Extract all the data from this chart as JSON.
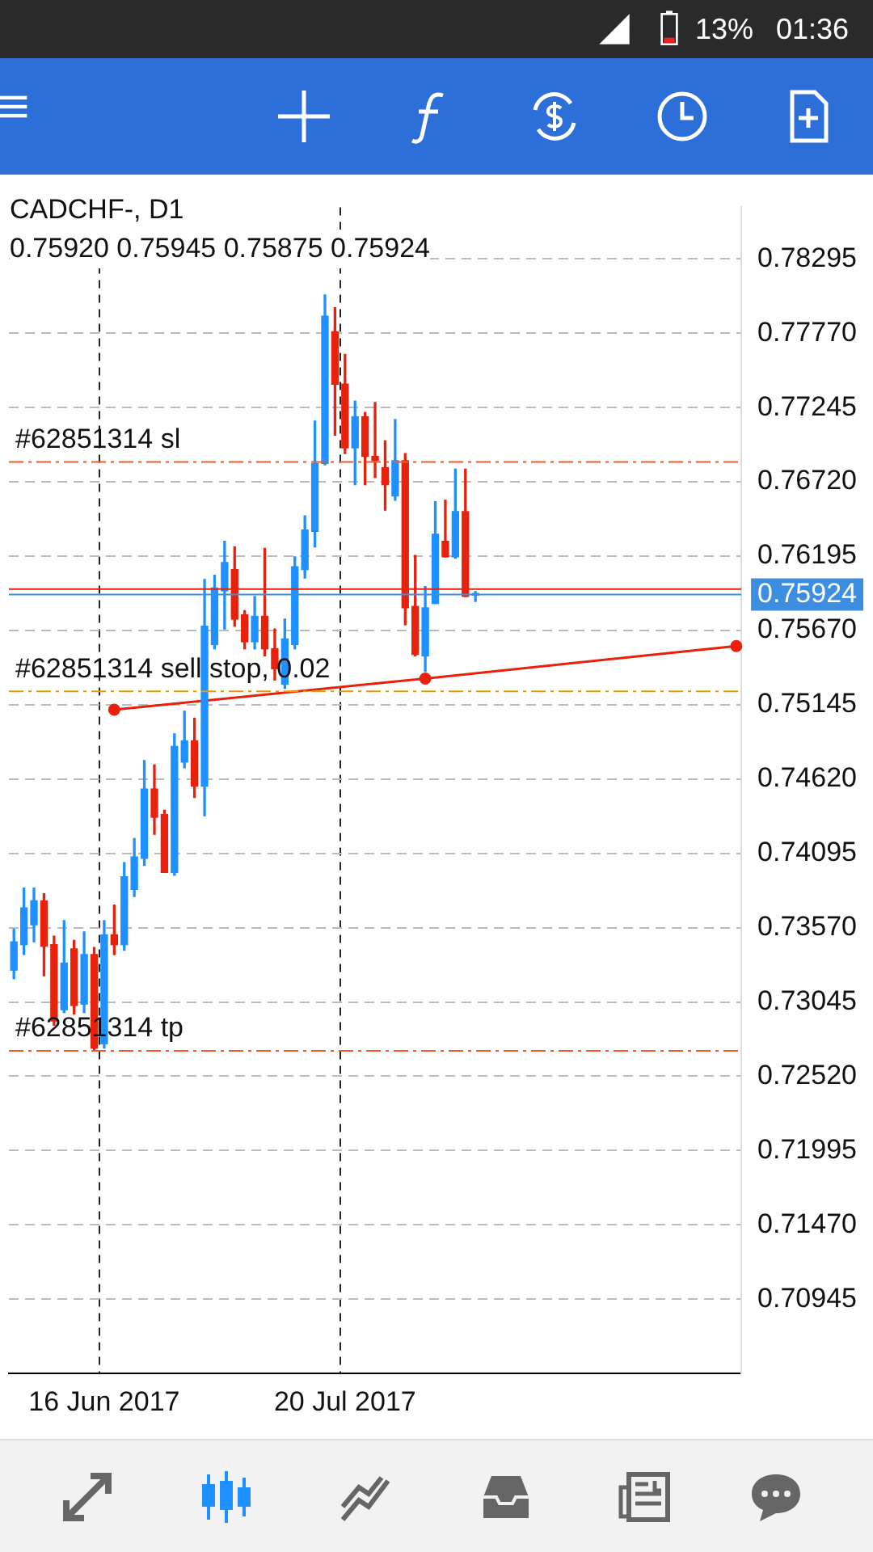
{
  "chart_data": {
    "type": "candlestick",
    "title": "CADCHF-, D1",
    "subtitle": "0.75920 0.75945 0.75875 0.75924",
    "annotations": [
      "13%",
      "01:36"
    ],
    "categories": [
      null,
      null,
      null,
      null,
      null,
      null,
      null,
      null,
      null,
      "16 Jun 2017",
      null,
      null,
      null,
      null,
      null,
      null,
      null,
      null,
      null,
      null,
      null,
      null,
      null,
      null,
      null,
      null,
      null,
      null,
      null,
      null,
      null,
      null,
      null,
      "20 Jul 2017",
      null,
      null,
      null,
      null,
      null,
      null,
      null,
      null,
      null,
      null,
      null,
      null,
      null,
      null,
      null,
      null,
      null,
      null,
      null,
      null,
      null,
      null,
      null,
      null,
      null,
      null,
      null,
      null,
      null,
      null,
      null,
      null,
      null,
      null,
      null,
      null,
      null,
      null,
      null
    ],
    "ohlc": [
      [
        0.7327,
        0.7356,
        0.7321,
        0.7347
      ],
      [
        0.7345,
        0.7385,
        0.7338,
        0.7371
      ],
      [
        0.7359,
        0.7385,
        0.7347,
        0.7376
      ],
      [
        0.7376,
        0.7381,
        0.7323,
        0.7344
      ],
      [
        0.7345,
        0.7351,
        0.7288,
        0.7291
      ],
      [
        0.7299,
        0.7362,
        0.7297,
        0.7332
      ],
      [
        0.7342,
        0.7348,
        0.7296,
        0.7302
      ],
      [
        0.7303,
        0.7354,
        0.7297,
        0.7338
      ],
      [
        0.7338,
        0.7343,
        0.727,
        0.7272
      ],
      [
        0.7275,
        0.7362,
        0.7272,
        0.7352
      ],
      [
        0.7352,
        0.7373,
        0.7338,
        0.7345
      ],
      [
        0.7345,
        0.7403,
        0.7341,
        0.7393
      ],
      [
        0.7384,
        0.742,
        0.7379,
        0.7407
      ],
      [
        0.7406,
        0.7475,
        0.7401,
        0.7455
      ],
      [
        0.7455,
        0.7472,
        0.7423,
        0.7435
      ],
      [
        0.7437,
        0.744,
        0.7396,
        0.7396
      ],
      [
        0.7396,
        0.7494,
        0.7394,
        0.7485
      ],
      [
        0.7474,
        0.751,
        0.747,
        0.7489
      ],
      [
        0.7489,
        0.7505,
        0.7449,
        0.7457
      ],
      [
        0.7457,
        0.7603,
        0.7436,
        0.757
      ],
      [
        0.7557,
        0.7606,
        0.7554,
        0.7597
      ],
      [
        0.7595,
        0.763,
        0.7568,
        0.7615
      ],
      [
        0.761,
        0.7626,
        0.757,
        0.7575
      ],
      [
        0.7578,
        0.7581,
        0.7554,
        0.7559
      ],
      [
        0.7559,
        0.7591,
        0.7554,
        0.7577
      ],
      [
        0.7577,
        0.7625,
        0.7549,
        0.7554
      ],
      [
        0.7554,
        0.7568,
        0.7532,
        0.754
      ],
      [
        0.7529,
        0.7575,
        0.7526,
        0.7561
      ],
      [
        0.7557,
        0.7619,
        0.7554,
        0.7612
      ],
      [
        0.761,
        0.7648,
        0.7604,
        0.7638
      ],
      [
        0.7637,
        0.7715,
        0.7626,
        0.7685
      ],
      [
        0.7685,
        0.7804,
        0.7684,
        0.7789
      ],
      [
        0.7778,
        0.7795,
        0.7705,
        0.7741
      ],
      [
        0.7741,
        0.7762,
        0.7692,
        0.7696
      ],
      [
        0.7696,
        0.7729,
        0.767,
        0.7718
      ],
      [
        0.7718,
        0.7721,
        0.767,
        0.769
      ],
      [
        0.769,
        0.7728,
        0.7675,
        0.7687
      ],
      [
        0.7682,
        0.7701,
        0.7652,
        0.767
      ],
      [
        0.7662,
        0.7716,
        0.7659,
        0.7687
      ],
      [
        0.7687,
        0.7692,
        0.7571,
        0.7583
      ],
      [
        0.7584,
        0.762,
        0.7549,
        0.755
      ],
      [
        0.7549,
        0.7598,
        0.7538,
        0.7583
      ],
      [
        0.7586,
        0.7658,
        0.7586,
        0.7635
      ],
      [
        0.763,
        0.7659,
        0.7619,
        0.7619
      ],
      [
        0.7619,
        0.7681,
        0.7618,
        0.7651
      ],
      [
        0.7651,
        0.7681,
        0.7591,
        0.7591
      ],
      [
        0.7592,
        0.75945,
        0.75875,
        0.75924
      ],
      null,
      null,
      null,
      null,
      null,
      null,
      null,
      null,
      null,
      null,
      null,
      null,
      null,
      null,
      null,
      null,
      null,
      null,
      null,
      null,
      null,
      null,
      null,
      null,
      null,
      null
    ],
    "colors": [
      "#1e90ff",
      "#1e90ff",
      "#1e90ff",
      "#e8210c",
      "#e8210c",
      "#1e90ff",
      "#e8210c",
      "#1e90ff",
      "#e8210c",
      "#1e90ff",
      "#e8210c",
      "#1e90ff",
      "#1e90ff",
      "#1e90ff",
      "#e8210c",
      "#e8210c",
      "#1e90ff",
      "#1e90ff",
      "#e8210c",
      "#1e90ff",
      "#1e90ff",
      "#1e90ff",
      "#e8210c",
      "#e8210c",
      "#1e90ff",
      "#e8210c",
      "#e8210c",
      "#1e90ff",
      "#1e90ff",
      "#1e90ff",
      "#1e90ff",
      "#1e90ff",
      "#e8210c",
      "#e8210c",
      "#1e90ff",
      "#e8210c",
      "#e8210c",
      "#e8210c",
      "#1e90ff",
      "#e8210c",
      "#e8210c",
      "#1e90ff",
      "#1e90ff",
      "#e8210c",
      "#1e90ff",
      "#e8210c",
      "#1e90ff",
      null,
      null,
      null,
      null,
      null,
      null,
      null,
      null,
      null,
      null,
      null,
      null,
      null,
      null,
      null,
      null,
      null,
      null,
      null,
      null,
      null,
      null,
      null,
      null,
      null,
      null
    ],
    "series": [
      {
        "type": "line",
        "color": "#e8210c",
        "values": [
          null,
          null,
          null,
          null,
          null,
          null,
          null,
          null,
          null,
          null,
          0.7511,
          null,
          null,
          null,
          null,
          null,
          null,
          null,
          null,
          null,
          null,
          null,
          null,
          null,
          null,
          null,
          null,
          null,
          null,
          null,
          null,
          null,
          null,
          null,
          null,
          null,
          null,
          null,
          null,
          null,
          null,
          0.7533,
          null,
          null,
          null,
          null,
          null,
          null,
          null,
          null,
          null,
          null,
          null,
          null,
          null,
          null,
          null,
          null,
          null,
          null,
          null,
          null,
          null,
          null,
          null,
          null,
          null,
          null,
          null,
          null,
          null,
          null,
          0.7556
        ]
      }
    ],
    "marker": "circle",
    "ylim": [
      0.7042,
      0.7866
    ],
    "yticks": [
      0.78295,
      {
        "value": 0.7777,
        "label": "0.77770"
      },
      0.77245,
      {
        "value": 0.7672,
        "label": "0.76720"
      },
      0.76195,
      {
        "value": 0.7567,
        "label": "0.75670"
      },
      0.75145,
      {
        "value": 0.7462,
        "label": "0.74620"
      },
      0.74095,
      {
        "value": 0.7357,
        "label": "0.73570"
      },
      0.73045,
      {
        "value": 0.7252,
        "label": "0.72520"
      },
      0.71995,
      {
        "value": 0.7147,
        "label": "0.71470"
      },
      0.70945
    ],
    "grid": true,
    "ref_lines": [
      {
        "axis": "y",
        "value": 0.7686,
        "label": "#62851314 sl",
        "color": "#f05a28",
        "line_style": "dashed"
      },
      {
        "axis": "y",
        "value": 0.7524,
        "label": "#62851314 sell stop, 0.02",
        "color": "#e89a00",
        "line_style": "dashed"
      },
      {
        "axis": "y",
        "value": 0.727,
        "label": "#62851314 tp",
        "color": "#f05a28",
        "line_style": "dashed"
      },
      {
        "axis": "y",
        "value": 0.75924,
        "label": "0.75924",
        "color": "#3d8ee0",
        "line_style": "solid"
      },
      {
        "axis": "y",
        "value": 0.75962,
        "label": null,
        "color": "#e8210c",
        "line_style": "solid"
      }
    ]
  }
}
